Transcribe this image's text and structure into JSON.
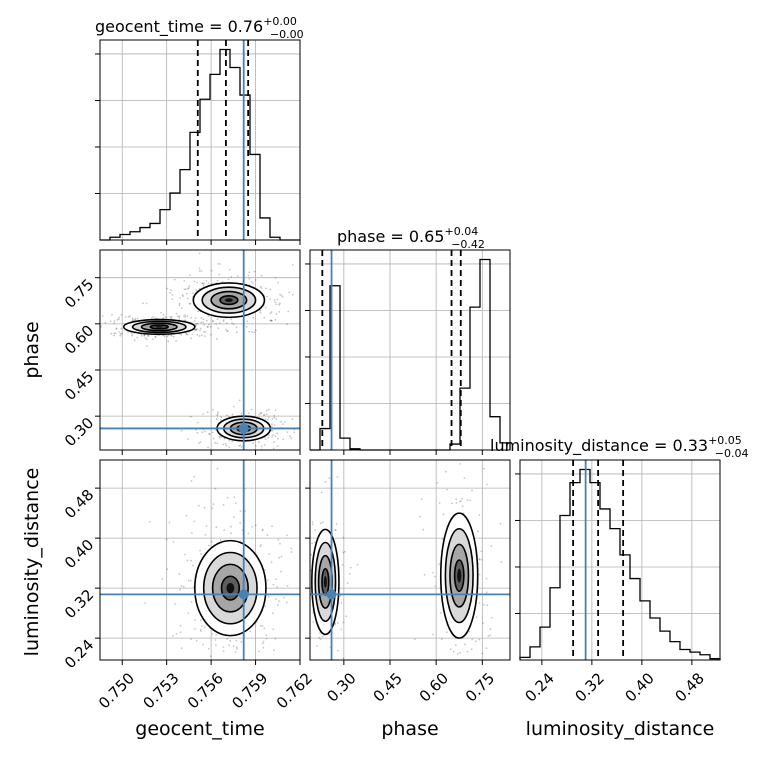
{
  "chart_data": {
    "type": "corner",
    "truth_color": "#4682b4",
    "parameters": [
      {
        "name": "geocent_time",
        "title": "geocent_time = 0.76",
        "title_sup": "+0.00",
        "title_sub": "−0.00",
        "range": [
          0.7485,
          0.762
        ],
        "ticks": [
          0.75,
          0.753,
          0.756,
          0.759,
          0.762
        ],
        "tick_labels": [
          "0.750",
          "0.753",
          "0.756",
          "0.759",
          "0.762"
        ],
        "truth": 0.7582,
        "quantiles": [
          0.7551,
          0.757,
          0.7585
        ],
        "hist_counts": [
          0,
          2,
          4,
          6,
          9,
          12,
          22,
          34,
          51,
          78,
          102,
          120,
          138,
          125,
          105,
          62,
          16,
          2,
          0,
          0
        ]
      },
      {
        "name": "phase",
        "title": "phase = 0.65",
        "title_sup": "+0.04",
        "title_sub": "−0.42",
        "range": [
          0.19,
          0.84
        ],
        "ticks": [
          0.3,
          0.45,
          0.6,
          0.75
        ],
        "tick_labels": [
          "0.30",
          "0.45",
          "0.60",
          "0.75"
        ],
        "truth": 0.26,
        "quantiles": [
          0.23,
          0.65,
          0.68
        ],
        "hist_counts": [
          0,
          18,
          138,
          10,
          1,
          0,
          0,
          0,
          0,
          0,
          0,
          0,
          0,
          0,
          5,
          52,
          120,
          160,
          28,
          6
        ]
      },
      {
        "name": "luminosity_distance",
        "title": "luminosity_distance = 0.33",
        "title_sup": "+0.05",
        "title_sub": "−0.04",
        "range": [
          0.205,
          0.525
        ],
        "ticks": [
          0.24,
          0.32,
          0.4,
          0.48
        ],
        "tick_labels": [
          "0.24",
          "0.32",
          "0.40",
          "0.48"
        ],
        "truth": 0.31,
        "quantiles": [
          0.29,
          0.33,
          0.37
        ],
        "hist_counts": [
          2,
          10,
          25,
          55,
          110,
          135,
          145,
          135,
          115,
          100,
          80,
          62,
          45,
          32,
          22,
          14,
          8,
          6,
          4,
          1
        ]
      }
    ],
    "xlabels": [
      "geocent_time",
      "phase",
      "luminosity_distance"
    ],
    "ylabels": [
      "",
      "phase",
      "luminosity_distance"
    ],
    "blobs": [
      {
        "panel": "phase_vs_geocent_time",
        "x_center": 0.7572,
        "y_center": 0.677,
        "x_sigma": 0.0012,
        "y_sigma": 0.028
      },
      {
        "panel": "phase_vs_geocent_time",
        "x_center": 0.7525,
        "y_center": 0.59,
        "x_sigma": 0.0012,
        "y_sigma": 0.012
      },
      {
        "panel": "phase_vs_geocent_time",
        "x_center": 0.7582,
        "y_center": 0.26,
        "x_sigma": 0.0009,
        "y_sigma": 0.02
      },
      {
        "panel": "luminosity_distance_vs_geocent_time",
        "x_center": 0.7573,
        "y_center": 0.32,
        "x_sigma": 0.0012,
        "y_sigma": 0.038
      },
      {
        "panel": "luminosity_distance_vs_phase",
        "x_center": 0.24,
        "y_center": 0.33,
        "x_sigma": 0.022,
        "y_sigma": 0.042
      },
      {
        "panel": "luminosity_distance_vs_phase",
        "x_center": 0.675,
        "y_center": 0.34,
        "x_sigma": 0.03,
        "y_sigma": 0.05
      }
    ],
    "grid": true
  }
}
